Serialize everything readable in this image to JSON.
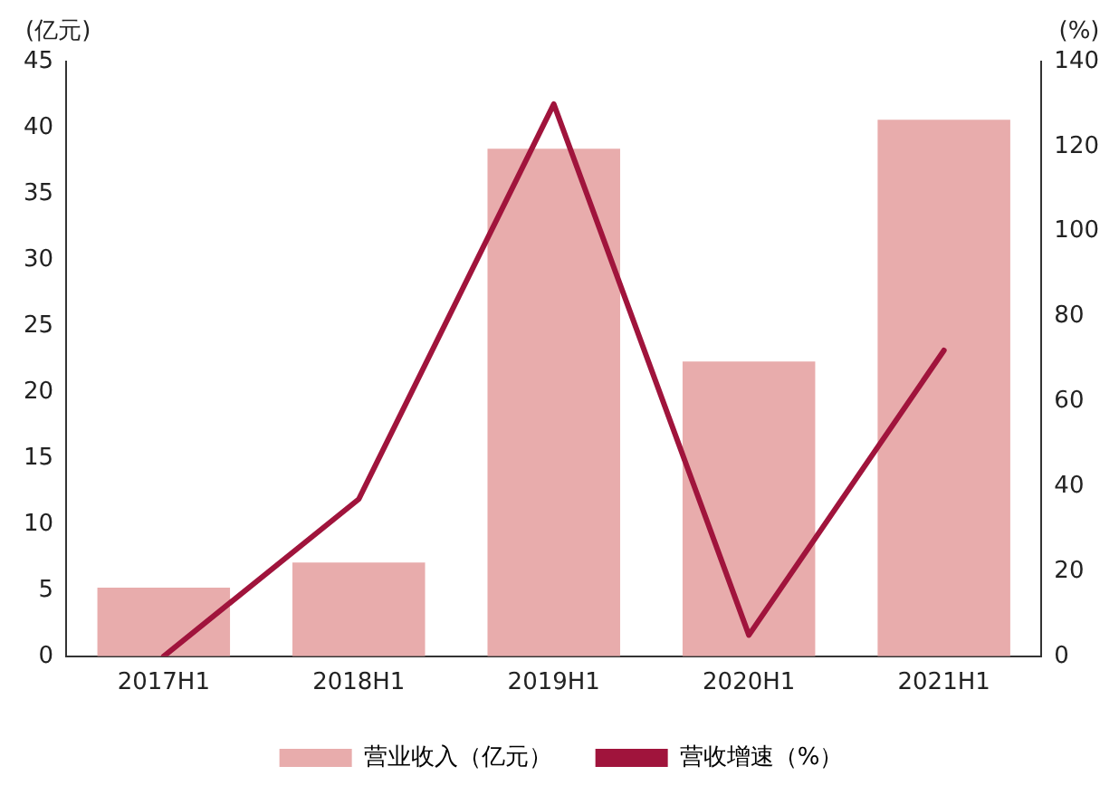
{
  "chart_data": {
    "type": "bar",
    "ylabel": "(亿元)",
    "y2label": "(%)",
    "categories": [
      "2017H1",
      "2018H1",
      "2019H1",
      "2020H1",
      "2021H1"
    ],
    "series": [
      {
        "name": "营业收入（亿元）",
        "color": "#e8acac",
        "values": [
          5.2,
          7.1,
          38.4,
          22.3,
          40.6
        ]
      },
      {
        "name": "营收增速（%）",
        "type": "line",
        "axis": "y2",
        "color": "#a0143c",
        "values": [
          0,
          37,
          130,
          5,
          72
        ]
      }
    ],
    "ylim": [
      0,
      45
    ],
    "yticks": [
      0,
      5,
      10,
      15,
      20,
      25,
      30,
      35,
      40,
      45
    ],
    "y2lim": [
      0,
      140
    ],
    "y2ticks": [
      0,
      20,
      40,
      60,
      80,
      100,
      120,
      140
    ],
    "grid": false,
    "legend": "bottom",
    "marker": "none"
  }
}
